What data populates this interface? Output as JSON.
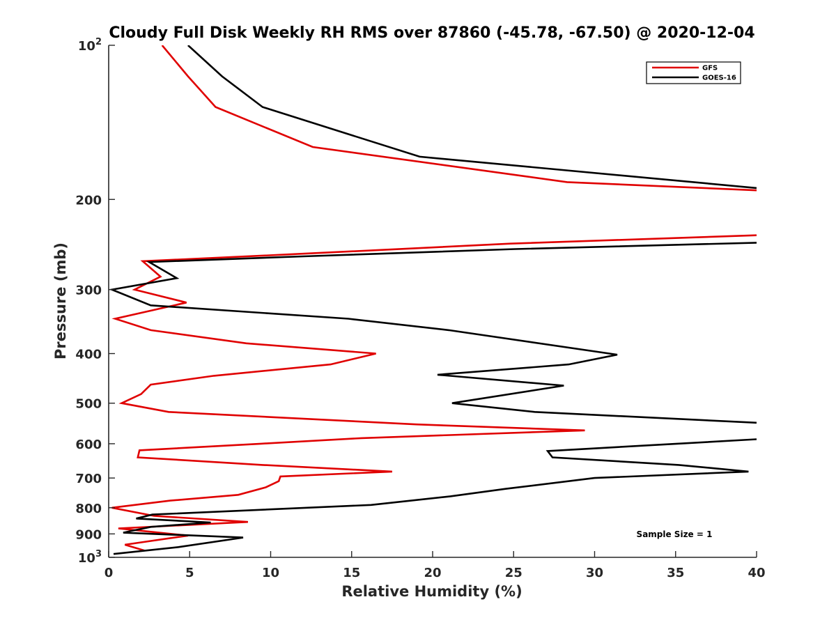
{
  "chart_data": {
    "type": "line",
    "title": "Cloudy Full Disk Weekly RH RMS over 87860 (-45.78, -67.50) @ 2020-12-04",
    "xlabel": "Relative Humidity (%)",
    "ylabel": "Pressure (mb)",
    "xlim": [
      0,
      40
    ],
    "ylim": [
      100,
      1000
    ],
    "y_scale": "log",
    "y_reversed": true,
    "grid": false,
    "legend_position": "top-right",
    "x_ticks": [
      "0",
      "5",
      "10",
      "15",
      "20",
      "25",
      "30",
      "35",
      "40"
    ],
    "y_ticks": [
      {
        "value": 100,
        "base": "10",
        "exp": "2"
      },
      {
        "value": 200,
        "label": "200"
      },
      {
        "value": 300,
        "label": "300"
      },
      {
        "value": 400,
        "label": "400"
      },
      {
        "value": 500,
        "label": "500"
      },
      {
        "value": 600,
        "label": "600"
      },
      {
        "value": 700,
        "label": "700"
      },
      {
        "value": 800,
        "label": "800"
      },
      {
        "value": 900,
        "label": "900"
      },
      {
        "value": 1000,
        "base": "10",
        "exp": "3"
      }
    ],
    "annotation": "Sample Size = 1",
    "series": [
      {
        "name": "GFS",
        "color": "#e00000",
        "points": [
          [
            3.3,
            100
          ],
          [
            4.9,
            115
          ],
          [
            6.6,
            132
          ],
          [
            12.6,
            158
          ],
          [
            28.3,
            185
          ],
          [
            40,
            192
          ],
          [
            null,
            null
          ],
          [
            40,
            235
          ],
          [
            24.8,
            244
          ],
          [
            11.2,
            256
          ],
          [
            2.1,
            264
          ],
          [
            3.2,
            283
          ],
          [
            1.6,
            300
          ],
          [
            4.8,
            318
          ],
          [
            0.4,
            342
          ],
          [
            2.6,
            360
          ],
          [
            8.5,
            382
          ],
          [
            16.5,
            400
          ],
          [
            13.7,
            420
          ],
          [
            6.5,
            442
          ],
          [
            2.6,
            460
          ],
          [
            2.0,
            480
          ],
          [
            0.8,
            500
          ],
          [
            3.7,
            520
          ],
          [
            19.0,
            550
          ],
          [
            29.4,
            565
          ],
          [
            15.6,
            585
          ],
          [
            9.4,
            600
          ],
          [
            1.9,
            618
          ],
          [
            1.8,
            638
          ],
          [
            9.5,
            660
          ],
          [
            17.5,
            680
          ],
          [
            10.6,
            695
          ],
          [
            10.5,
            710
          ],
          [
            9.7,
            730
          ],
          [
            8.0,
            755
          ],
          [
            3.8,
            775
          ],
          [
            0.2,
            800
          ],
          [
            2.8,
            830
          ],
          [
            8.6,
            853
          ],
          [
            0.6,
            878
          ],
          [
            4.9,
            907
          ],
          [
            1.0,
            945
          ],
          [
            2.2,
            970
          ]
        ]
      },
      {
        "name": "GOES-16",
        "color": "#000000",
        "points": [
          [
            4.9,
            100
          ],
          [
            7.0,
            115
          ],
          [
            9.5,
            132
          ],
          [
            19.2,
            165
          ],
          [
            40,
            190
          ],
          [
            null,
            null
          ],
          [
            40,
            243
          ],
          [
            25.1,
            250
          ],
          [
            12.6,
            258
          ],
          [
            2.5,
            265
          ],
          [
            4.2,
            285
          ],
          [
            0.2,
            300
          ],
          [
            2.6,
            322
          ],
          [
            14.8,
            342
          ],
          [
            21.0,
            360
          ],
          [
            31.4,
            402
          ],
          [
            28.4,
            420
          ],
          [
            20.3,
            440
          ],
          [
            28.1,
            462
          ],
          [
            21.2,
            500
          ],
          [
            26.3,
            520
          ],
          [
            40,
            546
          ],
          [
            null,
            null
          ],
          [
            40,
            588
          ],
          [
            27.1,
            620
          ],
          [
            27.4,
            638
          ],
          [
            35.2,
            660
          ],
          [
            39.5,
            680
          ],
          [
            30.0,
            700
          ],
          [
            24.5,
            735
          ],
          [
            21.1,
            760
          ],
          [
            16.2,
            790
          ],
          [
            2.7,
            825
          ],
          [
            1.7,
            840
          ],
          [
            6.3,
            855
          ],
          [
            2.6,
            872
          ],
          [
            0.9,
            895
          ],
          [
            8.3,
            915
          ],
          [
            4.3,
            955
          ],
          [
            0.3,
            985
          ]
        ]
      }
    ]
  }
}
